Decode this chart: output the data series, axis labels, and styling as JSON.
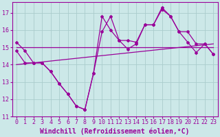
{
  "background_color": "#cce8e8",
  "grid_color": "#aacccc",
  "line_color": "#990099",
  "xlabel": "Windchill (Refroidissement éolien,°C)",
  "xlim": [
    -0.5,
    23.5
  ],
  "ylim": [
    11,
    17.6
  ],
  "yticks": [
    11,
    12,
    13,
    14,
    15,
    16,
    17
  ],
  "xticks": [
    0,
    1,
    2,
    3,
    4,
    5,
    6,
    7,
    8,
    9,
    10,
    11,
    12,
    13,
    14,
    15,
    16,
    17,
    18,
    19,
    20,
    21,
    22,
    23
  ],
  "series1_x": [
    0,
    1,
    2,
    3,
    4,
    5,
    6,
    7,
    8,
    9,
    10,
    11,
    12,
    13,
    14,
    15,
    16,
    17,
    18,
    19,
    20,
    21,
    22,
    23
  ],
  "series1_y": [
    15.3,
    14.8,
    14.1,
    14.1,
    13.6,
    12.9,
    12.3,
    11.6,
    11.4,
    13.5,
    16.8,
    16.0,
    15.4,
    14.9,
    15.2,
    16.3,
    16.3,
    17.2,
    16.8,
    15.9,
    15.9,
    15.2,
    15.2,
    14.6
  ],
  "series2_x": [
    0,
    1,
    2,
    3,
    4,
    5,
    6,
    7,
    8,
    9,
    10,
    11,
    12,
    13,
    14,
    15,
    16,
    17,
    18,
    19,
    20,
    21,
    22,
    23
  ],
  "series2_y": [
    14.8,
    14.1,
    14.1,
    14.1,
    13.6,
    12.9,
    12.3,
    11.6,
    11.4,
    13.5,
    15.9,
    16.8,
    15.4,
    15.4,
    15.3,
    16.3,
    16.3,
    17.3,
    16.8,
    15.9,
    15.3,
    14.7,
    15.2,
    14.6
  ],
  "trend1_x": [
    0,
    23
  ],
  "trend1_y": [
    15.0,
    15.0
  ],
  "trend2_x": [
    0,
    23
  ],
  "trend2_y": [
    14.0,
    15.2
  ],
  "xlabel_fontsize": 7,
  "tick_fontsize": 6,
  "figsize": [
    3.2,
    2.0
  ],
  "dpi": 100
}
